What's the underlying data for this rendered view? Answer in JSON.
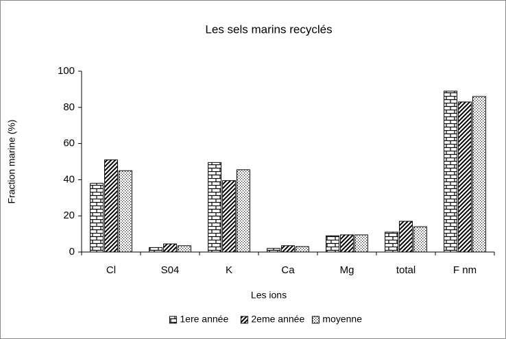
{
  "chart_data": {
    "type": "bar",
    "title": "Les sels marins recyclés",
    "x_label": "Les ions",
    "y_label": "Fraction marine (%)",
    "categories": [
      "Cl",
      "S04",
      "K",
      "Ca",
      "Mg",
      "total",
      "F nm"
    ],
    "series": [
      {
        "name": "1ere année",
        "color": "#000000",
        "pattern": "brick",
        "values": [
          38,
          2.5,
          49.5,
          2,
          9,
          11,
          89
        ]
      },
      {
        "name": "2eme année",
        "color": "#000000",
        "pattern": "hatch",
        "values": [
          51,
          4.5,
          39.5,
          3.5,
          9.5,
          17,
          83
        ]
      },
      {
        "name": "moyenne",
        "color": "#000000",
        "pattern": "dots",
        "values": [
          45,
          3.5,
          45.5,
          3,
          9.5,
          14,
          86
        ]
      }
    ],
    "ylim": [
      0,
      100
    ],
    "yticks": [
      0,
      20,
      40,
      60,
      80,
      100
    ],
    "grid": false,
    "legend": "bottom"
  }
}
